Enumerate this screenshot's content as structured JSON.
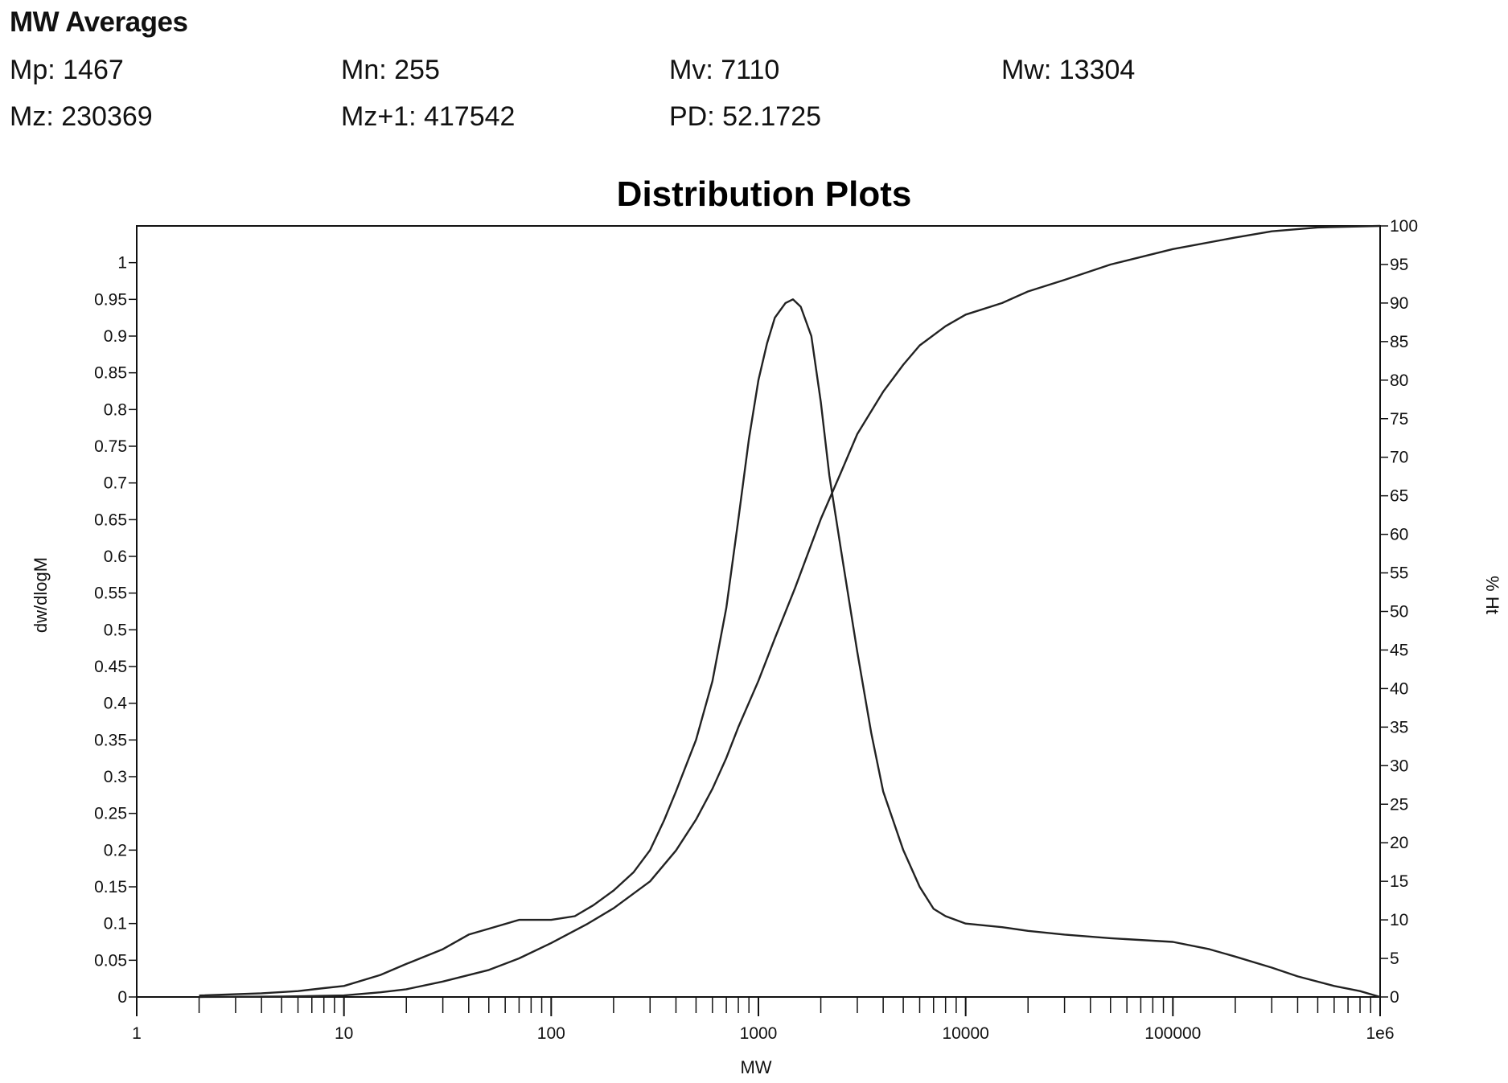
{
  "averages": {
    "heading": "MW Averages",
    "mp": "Mp: 1467",
    "mn": "Mn: 255",
    "mv": "Mv: 7110",
    "mw": "Mw: 13304",
    "mz": "Mz: 230369",
    "mz1": "Mz+1: 417542",
    "pd": "PD: 52.1725"
  },
  "chart_data": {
    "type": "line",
    "title": "Distribution Plots",
    "xlabel": "MW",
    "ylabel": "dw/dlogM",
    "y2label": "% Ht",
    "xscale": "log",
    "xlim": [
      1,
      1000000
    ],
    "ylim": [
      0,
      1.05
    ],
    "y2lim": [
      0,
      100
    ],
    "grid": false,
    "x_tick_labels": [
      "1",
      "10",
      "100",
      "1000",
      "10000",
      "100000",
      "1e6"
    ],
    "y_ticks": [
      "0",
      "0.05",
      "0.1",
      "0.15",
      "0.2",
      "0.25",
      "0.3",
      "0.35",
      "0.4",
      "0.45",
      "0.5",
      "0.55",
      "0.6",
      "0.65",
      "0.7",
      "0.75",
      "0.8",
      "0.85",
      "0.9",
      "0.95",
      "1"
    ],
    "y2_ticks": [
      "0",
      "5",
      "10",
      "15",
      "20",
      "25",
      "30",
      "35",
      "40",
      "45",
      "50",
      "55",
      "60",
      "65",
      "70",
      "75",
      "80",
      "85",
      "90",
      "95",
      "100"
    ],
    "series": [
      {
        "axis": "left",
        "points": [
          [
            2,
            0.002
          ],
          [
            4,
            0.005
          ],
          [
            6,
            0.008
          ],
          [
            8,
            0.012
          ],
          [
            10,
            0.015
          ],
          [
            15,
            0.03
          ],
          [
            20,
            0.045
          ],
          [
            30,
            0.065
          ],
          [
            40,
            0.085
          ],
          [
            50,
            0.093
          ],
          [
            70,
            0.105
          ],
          [
            100,
            0.105
          ],
          [
            130,
            0.11
          ],
          [
            160,
            0.125
          ],
          [
            200,
            0.145
          ],
          [
            250,
            0.17
          ],
          [
            300,
            0.2
          ],
          [
            350,
            0.24
          ],
          [
            400,
            0.28
          ],
          [
            500,
            0.35
          ],
          [
            600,
            0.43
          ],
          [
            700,
            0.53
          ],
          [
            800,
            0.65
          ],
          [
            900,
            0.76
          ],
          [
            1000,
            0.84
          ],
          [
            1100,
            0.89
          ],
          [
            1200,
            0.925
          ],
          [
            1350,
            0.945
          ],
          [
            1467,
            0.95
          ],
          [
            1600,
            0.94
          ],
          [
            1800,
            0.9
          ],
          [
            2000,
            0.81
          ],
          [
            2200,
            0.71
          ],
          [
            2500,
            0.61
          ],
          [
            3000,
            0.47
          ],
          [
            3500,
            0.36
          ],
          [
            4000,
            0.28
          ],
          [
            5000,
            0.2
          ],
          [
            6000,
            0.15
          ],
          [
            7000,
            0.12
          ],
          [
            8000,
            0.11
          ],
          [
            10000,
            0.1
          ],
          [
            15000,
            0.095
          ],
          [
            20000,
            0.09
          ],
          [
            30000,
            0.085
          ],
          [
            50000,
            0.08
          ],
          [
            100000,
            0.075
          ],
          [
            150000,
            0.065
          ],
          [
            200000,
            0.055
          ],
          [
            300000,
            0.04
          ],
          [
            400000,
            0.028
          ],
          [
            600000,
            0.015
          ],
          [
            800000,
            0.008
          ],
          [
            1000000,
            0.0
          ]
        ]
      },
      {
        "axis": "right",
        "points": [
          [
            2,
            0.0
          ],
          [
            5,
            0.05
          ],
          [
            10,
            0.2
          ],
          [
            15,
            0.6
          ],
          [
            20,
            1.0
          ],
          [
            30,
            2.0
          ],
          [
            50,
            3.5
          ],
          [
            70,
            5.0
          ],
          [
            100,
            7.0
          ],
          [
            150,
            9.5
          ],
          [
            200,
            11.5
          ],
          [
            300,
            15.0
          ],
          [
            400,
            19.0
          ],
          [
            500,
            23.0
          ],
          [
            600,
            27.0
          ],
          [
            700,
            31.0
          ],
          [
            800,
            35.0
          ],
          [
            1000,
            41.0
          ],
          [
            1200,
            46.5
          ],
          [
            1500,
            53.0
          ],
          [
            2000,
            62.0
          ],
          [
            2500,
            68.0
          ],
          [
            3000,
            73.0
          ],
          [
            4000,
            78.5
          ],
          [
            5000,
            82.0
          ],
          [
            6000,
            84.5
          ],
          [
            8000,
            87.0
          ],
          [
            10000,
            88.5
          ],
          [
            15000,
            90.0
          ],
          [
            20000,
            91.5
          ],
          [
            30000,
            93.0
          ],
          [
            50000,
            95.0
          ],
          [
            100000,
            97.0
          ],
          [
            200000,
            98.5
          ],
          [
            300000,
            99.3
          ],
          [
            500000,
            99.8
          ],
          [
            1000000,
            100.0
          ]
        ]
      }
    ]
  }
}
